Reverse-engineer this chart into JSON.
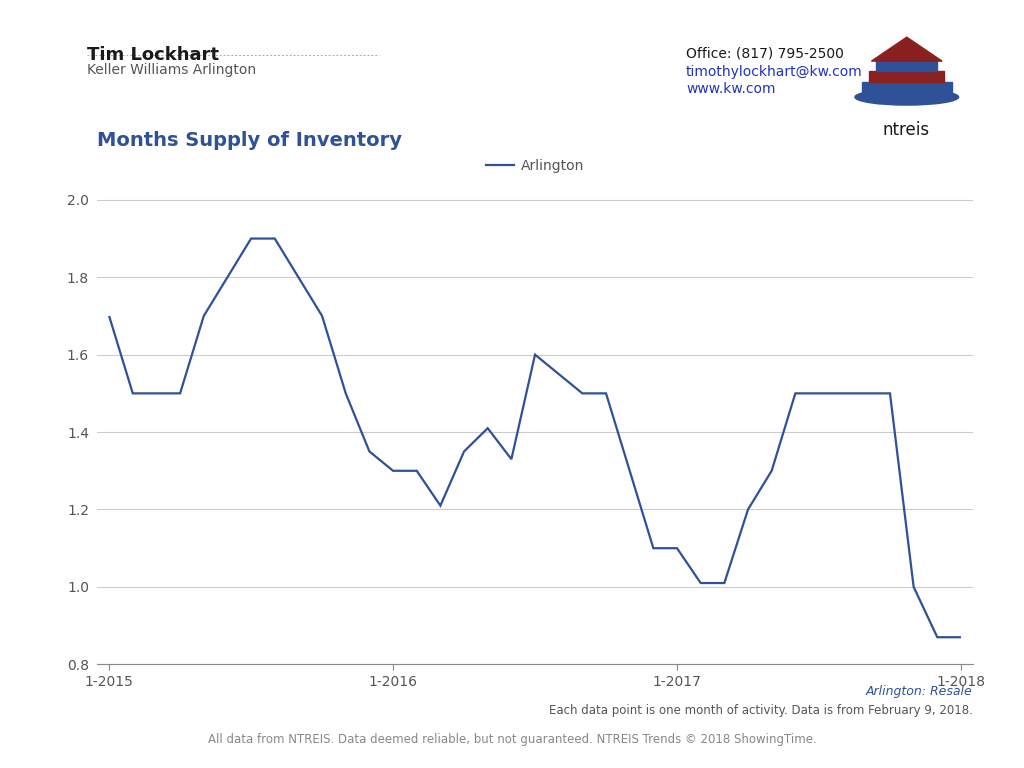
{
  "title": "Months Supply of Inventory",
  "line_color": "#2e5198",
  "background_color": "#ffffff",
  "ylim": [
    0.8,
    2.05
  ],
  "yticks": [
    0.8,
    1.0,
    1.2,
    1.4,
    1.6,
    1.8,
    2.0
  ],
  "legend_label": "Arlington",
  "subtitle_right": "Arlington: Resale",
  "footnote1": "Each data point is one month of activity. Data is from February 9, 2018.",
  "footnote2": "All data from NTREIS. Data deemed reliable, but not guaranteed. NTREIS Trends © 2018 ShowingTime.",
  "header_name": "Tim Lockhart",
  "header_company": "Keller Williams Arlington",
  "header_office": "Office: (817) 795-2500",
  "header_email": "timothylockhart@kw.com",
  "header_web": "www.kw.com",
  "x_data": [
    0,
    1,
    2,
    3,
    4,
    5,
    6,
    7,
    8,
    9,
    10,
    11,
    12,
    13,
    14,
    15,
    16,
    17,
    18,
    19,
    20,
    21,
    22,
    23,
    24,
    25,
    26,
    27,
    28,
    29,
    30,
    31,
    32,
    33,
    34,
    35,
    36
  ],
  "y_data": [
    1.7,
    1.5,
    1.5,
    1.5,
    1.7,
    1.8,
    1.9,
    1.9,
    1.8,
    1.7,
    1.5,
    1.35,
    1.3,
    1.3,
    1.21,
    1.35,
    1.41,
    1.33,
    1.6,
    1.55,
    1.5,
    1.5,
    1.3,
    1.1,
    1.1,
    1.01,
    1.01,
    1.2,
    1.3,
    1.5,
    1.5,
    1.5,
    1.5,
    1.5,
    1.0,
    0.87,
    0.87
  ],
  "x_tick_positions": [
    0,
    12,
    24,
    36
  ],
  "x_tick_labels": [
    "1-2015",
    "1-2016",
    "1-2017",
    "1-2018"
  ]
}
